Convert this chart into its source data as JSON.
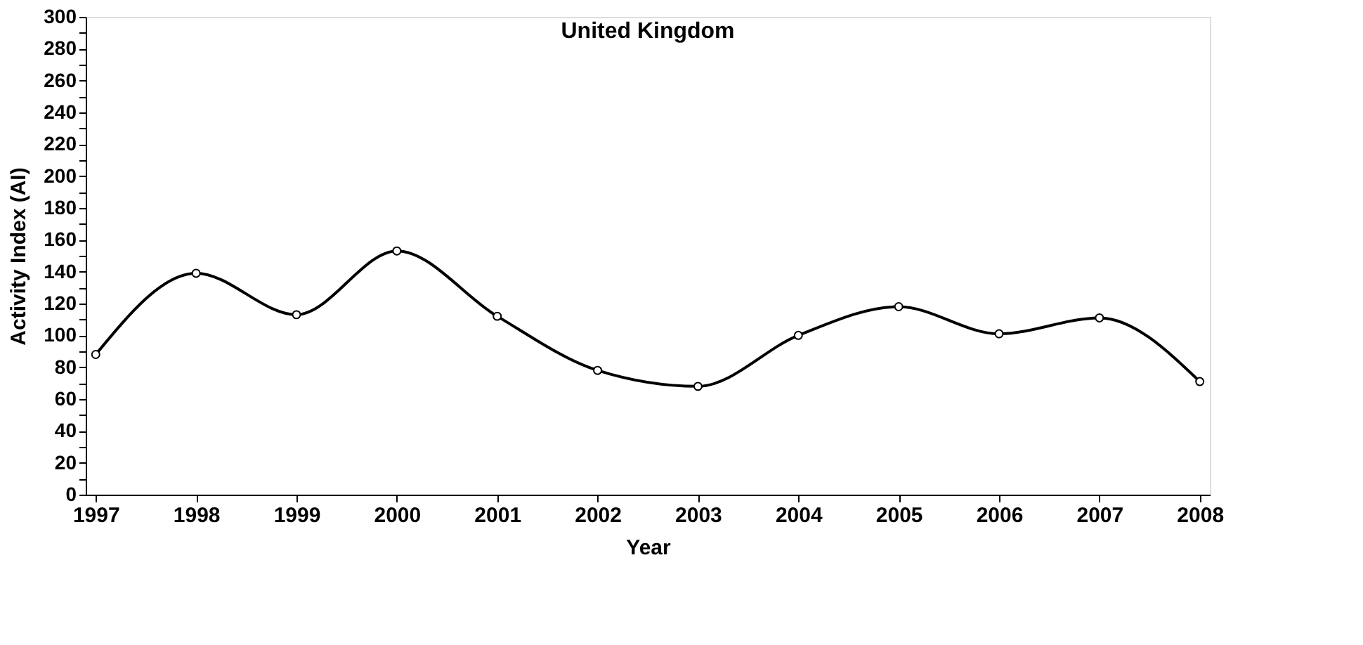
{
  "chart_data": {
    "type": "line",
    "title": "United Kingdom",
    "xlabel": "Year",
    "ylabel": "Activity Index (AI)",
    "categories": [
      "1997",
      "1998",
      "1999",
      "2000",
      "2001",
      "2002",
      "2003",
      "2004",
      "2005",
      "2006",
      "2007",
      "2008"
    ],
    "series": [
      {
        "color": "#000000",
        "values": [
          88,
          139,
          113,
          153,
          112,
          78,
          68,
          100,
          118,
          101,
          111,
          71
        ]
      }
    ],
    "ylim": [
      0,
      300
    ],
    "yticks": [
      0,
      {
        "value": 10,
        "label": null
      },
      20,
      {
        "value": 30,
        "label": null
      },
      40,
      {
        "value": 50,
        "label": null
      },
      60,
      {
        "value": 70,
        "label": null
      },
      80,
      {
        "value": 90,
        "label": null
      },
      100,
      {
        "value": 110,
        "label": null
      },
      120,
      {
        "value": 130,
        "label": null
      },
      140,
      {
        "value": 150,
        "label": null
      },
      160,
      {
        "value": 170,
        "label": null
      },
      180,
      {
        "value": 190,
        "label": null
      },
      200,
      {
        "value": 210,
        "label": null
      },
      220,
      {
        "value": 230,
        "label": null
      },
      240,
      {
        "value": 250,
        "label": null
      },
      260,
      {
        "value": 270,
        "label": null
      },
      280,
      {
        "value": 290,
        "label": null
      },
      300
    ],
    "grid": false,
    "marker": "circle",
    "line_style": "solid"
  }
}
